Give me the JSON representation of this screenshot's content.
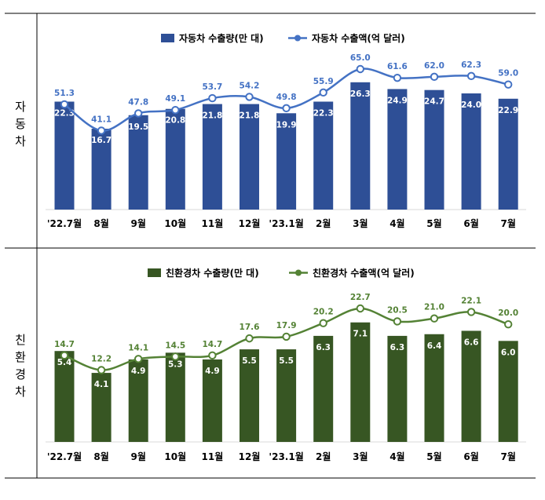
{
  "row_labels": [
    "자동차",
    "친환경차"
  ],
  "chart_data": [
    {
      "type": "bar",
      "categories": [
        "'22.7월",
        "8월",
        "9월",
        "10월",
        "11월",
        "12월",
        "'23.1월",
        "2월",
        "3월",
        "4월",
        "5월",
        "6월",
        "7월"
      ],
      "series": [
        {
          "name": "자동차 수출량(만 대)",
          "type": "bar",
          "values": [
            22.3,
            16.7,
            19.5,
            20.8,
            21.8,
            21.8,
            19.9,
            22.3,
            26.3,
            24.9,
            24.7,
            24.0,
            22.9
          ],
          "labels": [
            "22.3",
            "16.7",
            "19.5",
            "20.8",
            "21.8",
            "21.8",
            "19.9",
            "22.3",
            "26.3",
            "24.9",
            "24.7",
            "24.0",
            "22.9"
          ]
        },
        {
          "name": "자동차 수출액(억 달러)",
          "type": "line",
          "values": [
            51.3,
            41.1,
            47.8,
            49.1,
            53.7,
            54.2,
            49.8,
            55.9,
            65.0,
            61.6,
            62.0,
            62.3,
            59.0
          ],
          "labels": [
            "51.3",
            "41.1",
            "47.8",
            "49.1",
            "53.7",
            "54.2",
            "49.8",
            "55.9",
            "65.0",
            "61.6",
            "62.0",
            "62.3",
            "59.0"
          ]
        }
      ],
      "colors": {
        "bar": "#2e4f96",
        "line": "#4472c4",
        "marker_fill": "#ffffff",
        "label": "#4472c4"
      }
    },
    {
      "type": "bar",
      "categories": [
        "'22.7월",
        "8월",
        "9월",
        "10월",
        "11월",
        "12월",
        "'23.1월",
        "2월",
        "3월",
        "4월",
        "5월",
        "6월",
        "7월"
      ],
      "series": [
        {
          "name": "친환경차 수출량(만 대)",
          "type": "bar",
          "values": [
            5.4,
            4.1,
            4.9,
            5.3,
            4.9,
            5.5,
            5.5,
            6.3,
            7.1,
            6.3,
            6.4,
            6.6,
            6.0
          ],
          "labels": [
            "5.4",
            "4.1",
            "4.9",
            "5.3",
            "4.9",
            "5.5",
            "5.5",
            "6.3",
            "7.1",
            "6.3",
            "6.4",
            "6.6",
            "6.0"
          ]
        },
        {
          "name": "친환경차 수출액(억 달러)",
          "type": "line",
          "values": [
            14.7,
            12.2,
            14.1,
            14.5,
            14.7,
            17.6,
            17.9,
            20.2,
            22.7,
            20.5,
            21.0,
            22.1,
            20.0
          ],
          "labels": [
            "14.7",
            "12.2",
            "14.1",
            "14.5",
            "14.7",
            "17.6",
            "17.9",
            "20.2",
            "22.7",
            "20.5",
            "21.0",
            "22.1",
            "20.0"
          ]
        }
      ],
      "colors": {
        "bar": "#375623",
        "line": "#548235",
        "marker_fill": "#ffffff",
        "label": "#548235"
      }
    }
  ]
}
